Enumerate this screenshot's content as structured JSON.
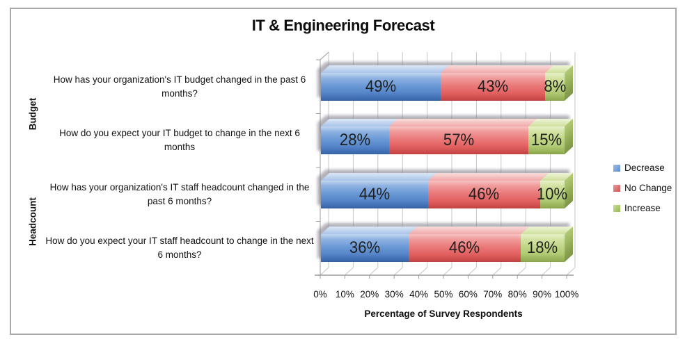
{
  "chart_data": {
    "type": "bar",
    "variant": "horizontal-stacked-3d",
    "title": "IT & Engineering Forecast",
    "xlabel": "Percentage of Survey Respondents",
    "xlim": [
      0,
      100
    ],
    "x_ticks": [
      "0%",
      "10%",
      "20%",
      "30%",
      "40%",
      "50%",
      "60%",
      "70%",
      "80%",
      "90%",
      "100%"
    ],
    "grid": "vertical-on",
    "legend_position": "right",
    "data_label_format": "{value}%",
    "groups": [
      {
        "label": "Budget",
        "category_indexes": [
          0,
          1
        ]
      },
      {
        "label": "Headcount",
        "category_indexes": [
          2,
          3
        ]
      }
    ],
    "categories": [
      "How has your organization's IT budget changed in the past 6 months?",
      "How do you expect your IT budget to change in the next 6 months",
      "How has your organization's IT staff headcount changed in the past 6 months?",
      "How do you expect your IT staff headcount to change in the next 6 months?"
    ],
    "series": [
      {
        "name": "Decrease",
        "color": "#6d9ddb",
        "values": [
          49,
          28,
          44,
          36
        ]
      },
      {
        "name": "No Change",
        "color": "#d95f5f",
        "values": [
          43,
          57,
          46,
          46
        ]
      },
      {
        "name": "Increase",
        "color": "#a8cf6a",
        "values": [
          8,
          15,
          10,
          18
        ]
      }
    ]
  },
  "colors": {
    "frame_border": "#a9a9a9",
    "gridline": "#c6c6c6",
    "axis": "#9b9b9b",
    "text": "#111111"
  }
}
